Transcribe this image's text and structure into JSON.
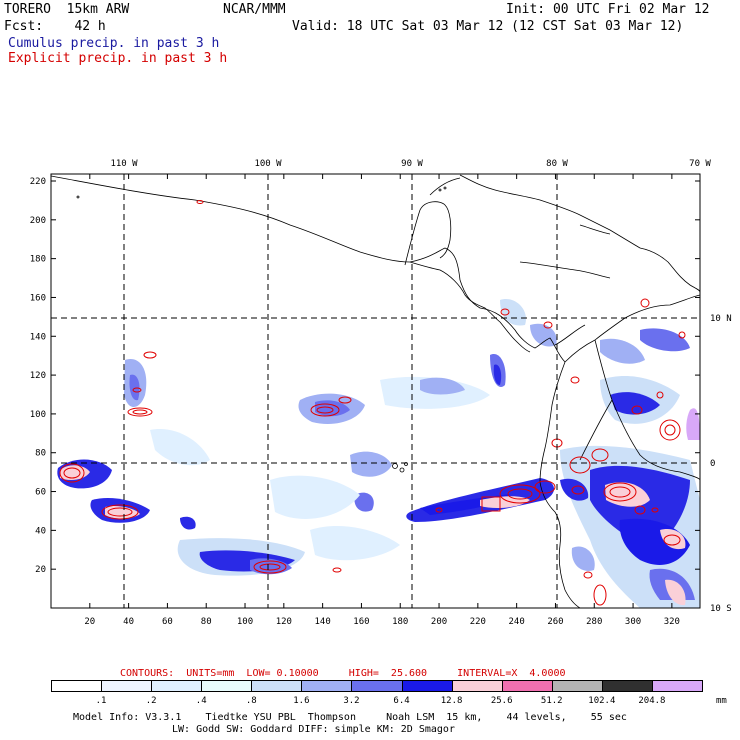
{
  "header": {
    "model": "TORERO  15km ARW",
    "org": "NCAR/MMM",
    "init": "Init: 00 UTC Fri 02 Mar 12",
    "fcst": "Fcst:    42 h",
    "valid": "Valid: 18 UTC Sat 03 Mar 12 (12 CST Sat 03 Mar 12)",
    "cumulus_label": "Cumulus precip. in past 3 h",
    "explicit_label": "Explicit precip. in past 3 h"
  },
  "colors": {
    "cumulus_text": "#1a1aa0",
    "explicit_text": "#d40000",
    "contour": "#e00000",
    "coast": "#000000"
  },
  "map": {
    "lon_labels": [
      "110 W",
      "100 W",
      "90 W",
      "80 W",
      "70 W"
    ],
    "lat_labels": [
      "10 N",
      "0",
      "10 S"
    ],
    "x_ticks": [
      "20",
      "40",
      "60",
      "80",
      "100",
      "120",
      "140",
      "160",
      "180",
      "200",
      "220",
      "240",
      "260",
      "280",
      "300",
      "320"
    ],
    "y_ticks": [
      "20",
      "40",
      "60",
      "80",
      "100",
      "120",
      "140",
      "160",
      "180",
      "200",
      "220"
    ]
  },
  "contours_info": {
    "label": "CONTOURS:  UNITS=mm  LOW= 0.10000     HIGH=  25.600     INTERVAL=X  4.0000"
  },
  "colorbar": {
    "labels": [
      ".1",
      ".2",
      ".4",
      ".8",
      "1.6",
      "3.2",
      "6.4",
      "12.8",
      "25.6",
      "51.2",
      "102.4",
      "204.8"
    ],
    "unit": "mm",
    "colors": [
      "#ffffff",
      "#eef4ff",
      "#e0f0ff",
      "#e8fcfc",
      "#cce0f8",
      "#a0b0f4",
      "#6a70ee",
      "#1a1ae8",
      "#fad0d8",
      "#f070b0",
      "#b4b4b4",
      "#303030",
      "#d8a8f8"
    ]
  },
  "footer": {
    "line1": "Model Info: V3.3.1    Tiedtke YSU PBL  Thompson     Noah LSM  15 km,    44 levels,    55 sec",
    "line2": "LW: Godd SW: Goddard DIFF: simple KM: 2D Smagor"
  }
}
